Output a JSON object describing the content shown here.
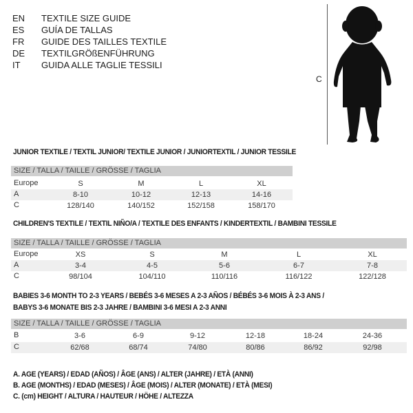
{
  "languages": [
    {
      "code": "EN",
      "text": "TEXTILE SIZE GUIDE"
    },
    {
      "code": "ES",
      "text": "GUÍA DE TALLAS"
    },
    {
      "code": "FR",
      "text": "GUIDE DES TAILLES TEXTILE"
    },
    {
      "code": "DE",
      "text": "TEXTILGRÖßENFÜHRUNG"
    },
    {
      "code": "IT",
      "text": "GUIDA ALLE TAGLIE TESSILI"
    }
  ],
  "figure": {
    "measure_label": "C"
  },
  "size_header": "SIZE / TALLA / TAILLE / GRÖSSE / TAGLIA",
  "tables": [
    {
      "title": "JUNIOR TEXTILE / TEXTIL JUNIOR/ TEXTILE JUNIOR / JUNIORTEXTIL / JUNIOR TESSILE",
      "rows": [
        {
          "label": "Europe",
          "values": [
            "S",
            "M",
            "L",
            "XL"
          ]
        },
        {
          "label": "A",
          "values": [
            "8-10",
            "10-12",
            "12-13",
            "14-16"
          ]
        },
        {
          "label": "C",
          "values": [
            "128/140",
            "140/152",
            "152/158",
            "158/170"
          ]
        }
      ]
    },
    {
      "title": "CHILDREN'S TEXTILE / TEXTIL NIÑO/A / TEXTILE DES ENFANTS / KINDERTEXTIL / BAMBINI TESSILE",
      "rows": [
        {
          "label": "Europe",
          "values": [
            "XS",
            "S",
            "M",
            "L",
            "XL"
          ]
        },
        {
          "label": "A",
          "values": [
            "3-4",
            "4-5",
            "5-6",
            "6-7",
            "7-8"
          ]
        },
        {
          "label": "C",
          "values": [
            "98/104",
            "104/110",
            "110/116",
            "116/122",
            "122/128"
          ]
        }
      ]
    },
    {
      "title": "BABIES 3-6 MONTH TO 2-3 YEARS / BEBÉS 3-6 MESES A 2-3 AÑOS / BÉBÉS 3-6 MOIS À 2-3 ANS /",
      "title2": "BABYS 3-6 MONATE BIS 2-3 JAHRE / BAMBINI 3-6 MESI A 2-3 ANNI",
      "rows": [
        {
          "label": "B",
          "values": [
            "3-6",
            "6-9",
            "9-12",
            "12-18",
            "18-24",
            "24-36"
          ]
        },
        {
          "label": "C",
          "values": [
            "62/68",
            "68/74",
            "74/80",
            "80/86",
            "86/92",
            "92/98"
          ]
        }
      ]
    }
  ],
  "legend": [
    "A. AGE (YEARS) / EDAD (AÑOS) / ÂGE (ANS) / ALTER (JAHRE) / ETÀ (ANNI)",
    "B. AGE (MONTHS) / EDAD (MESES) / ÂGE (MOIS) / ALTER (MONATE) / ETÀ (MESI)",
    "C. (cm) HEIGHT / ALTURA / HAUTEUR / HÖHE / ALTEZZA"
  ]
}
